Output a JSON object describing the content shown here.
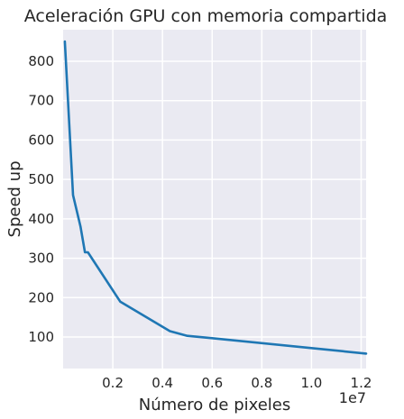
{
  "chart_data": {
    "type": "line",
    "title": "Aceleración GPU con memoria compartida",
    "xlabel": "Número de pixeles",
    "ylabel": "Speed up",
    "x_offset_text": "1e7",
    "xlim": [
      0.0,
      1.22
    ],
    "ylim": [
      20,
      880
    ],
    "grid": true,
    "x_ticks": [
      0.2,
      0.4,
      0.6,
      0.8,
      1.0,
      1.2
    ],
    "x_tick_labels": [
      "0.2",
      "0.4",
      "0.6",
      "0.8",
      "1.0",
      "1.2"
    ],
    "y_ticks": [
      100,
      200,
      300,
      400,
      500,
      600,
      700,
      800
    ],
    "y_tick_labels": [
      "100",
      "200",
      "300",
      "400",
      "500",
      "600",
      "700",
      "800"
    ],
    "series": [
      {
        "color": "#1f77b4",
        "x": [
          0.007,
          0.04,
          0.07,
          0.088,
          0.1,
          0.23,
          0.43,
          0.5,
          0.6,
          1.0,
          1.22
        ],
        "y": [
          850,
          460,
          380,
          315,
          315,
          190,
          115,
          103,
          97,
          72,
          58
        ]
      }
    ]
  }
}
